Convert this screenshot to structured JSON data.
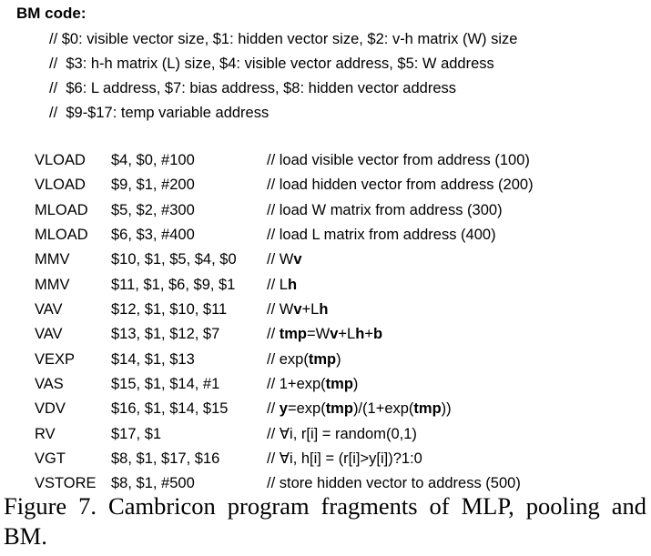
{
  "heading": "BM code:",
  "header_comments": [
    "// $0: visible vector size, $1: hidden vector size, $2: v-h matrix (W) size",
    "//  $3: h-h matrix (L) size, $4: visible vector address, $5: W address",
    "//  $6: L address, $7: bias address, $8: hidden vector address",
    "//  $9-$17: temp variable address"
  ],
  "code_rows": [
    {
      "op": "VLOAD",
      "args": "$4, $0, #100",
      "comment": [
        {
          "t": "// load visible vector from address (100)"
        }
      ]
    },
    {
      "op": "VLOAD",
      "args": "$9, $1, #200",
      "comment": [
        {
          "t": "// load hidden vector from address (200)"
        }
      ]
    },
    {
      "op": "MLOAD",
      "args": "$5, $2, #300",
      "comment": [
        {
          "t": "// load W matrix from address (300)"
        }
      ]
    },
    {
      "op": "MLOAD",
      "args": "$6, $3, #400",
      "comment": [
        {
          "t": "// load L matrix from address (400)"
        }
      ]
    },
    {
      "op": "MMV",
      "args": "$10, $1, $5, $4, $0",
      "comment": [
        {
          "t": "// W"
        },
        {
          "t": "v",
          "b": true
        }
      ]
    },
    {
      "op": "MMV",
      "args": "$11, $1, $6, $9, $1",
      "comment": [
        {
          "t": "// L"
        },
        {
          "t": "h",
          "b": true
        }
      ]
    },
    {
      "op": "VAV",
      "args": "$12, $1, $10, $11",
      "comment": [
        {
          "t": "// W"
        },
        {
          "t": "v",
          "b": true
        },
        {
          "t": "+L"
        },
        {
          "t": "h",
          "b": true
        }
      ]
    },
    {
      "op": "VAV",
      "args": "$13, $1, $12, $7",
      "comment": [
        {
          "t": "// "
        },
        {
          "t": "tmp",
          "b": true
        },
        {
          "t": "=W"
        },
        {
          "t": "v",
          "b": true
        },
        {
          "t": "+L"
        },
        {
          "t": "h",
          "b": true
        },
        {
          "t": "+"
        },
        {
          "t": "b",
          "b": true
        }
      ]
    },
    {
      "op": "VEXP",
      "args": "$14, $1, $13",
      "comment": [
        {
          "t": "// exp("
        },
        {
          "t": "tmp",
          "b": true
        },
        {
          "t": ")"
        }
      ]
    },
    {
      "op": "VAS",
      "args": "$15, $1, $14, #1",
      "comment": [
        {
          "t": "// 1+exp("
        },
        {
          "t": "tmp",
          "b": true
        },
        {
          "t": ")"
        }
      ]
    },
    {
      "op": "VDV",
      "args": "$16, $1, $14, $15",
      "comment": [
        {
          "t": "// "
        },
        {
          "t": "y",
          "b": true
        },
        {
          "t": "=exp("
        },
        {
          "t": "tmp",
          "b": true
        },
        {
          "t": ")/(1+exp("
        },
        {
          "t": "tmp",
          "b": true
        },
        {
          "t": "))"
        }
      ]
    },
    {
      "op": "RV",
      "args": "$17, $1",
      "comment": [
        {
          "t": "// ∀i, r[i] = random(0,1)"
        }
      ]
    },
    {
      "op": "VGT",
      "args": "$8, $1, $17, $16",
      "comment": [
        {
          "t": "// ∀i, h[i] = (r[i]>y[i])?1:0"
        }
      ]
    },
    {
      "op": "VSTORE",
      "args": "$8, $1, #500",
      "comment": [
        {
          "t": "// store hidden vector to address (500)"
        }
      ]
    }
  ],
  "caption": "Figure 7. Cambricon program fragments of MLP, pooling and BM."
}
